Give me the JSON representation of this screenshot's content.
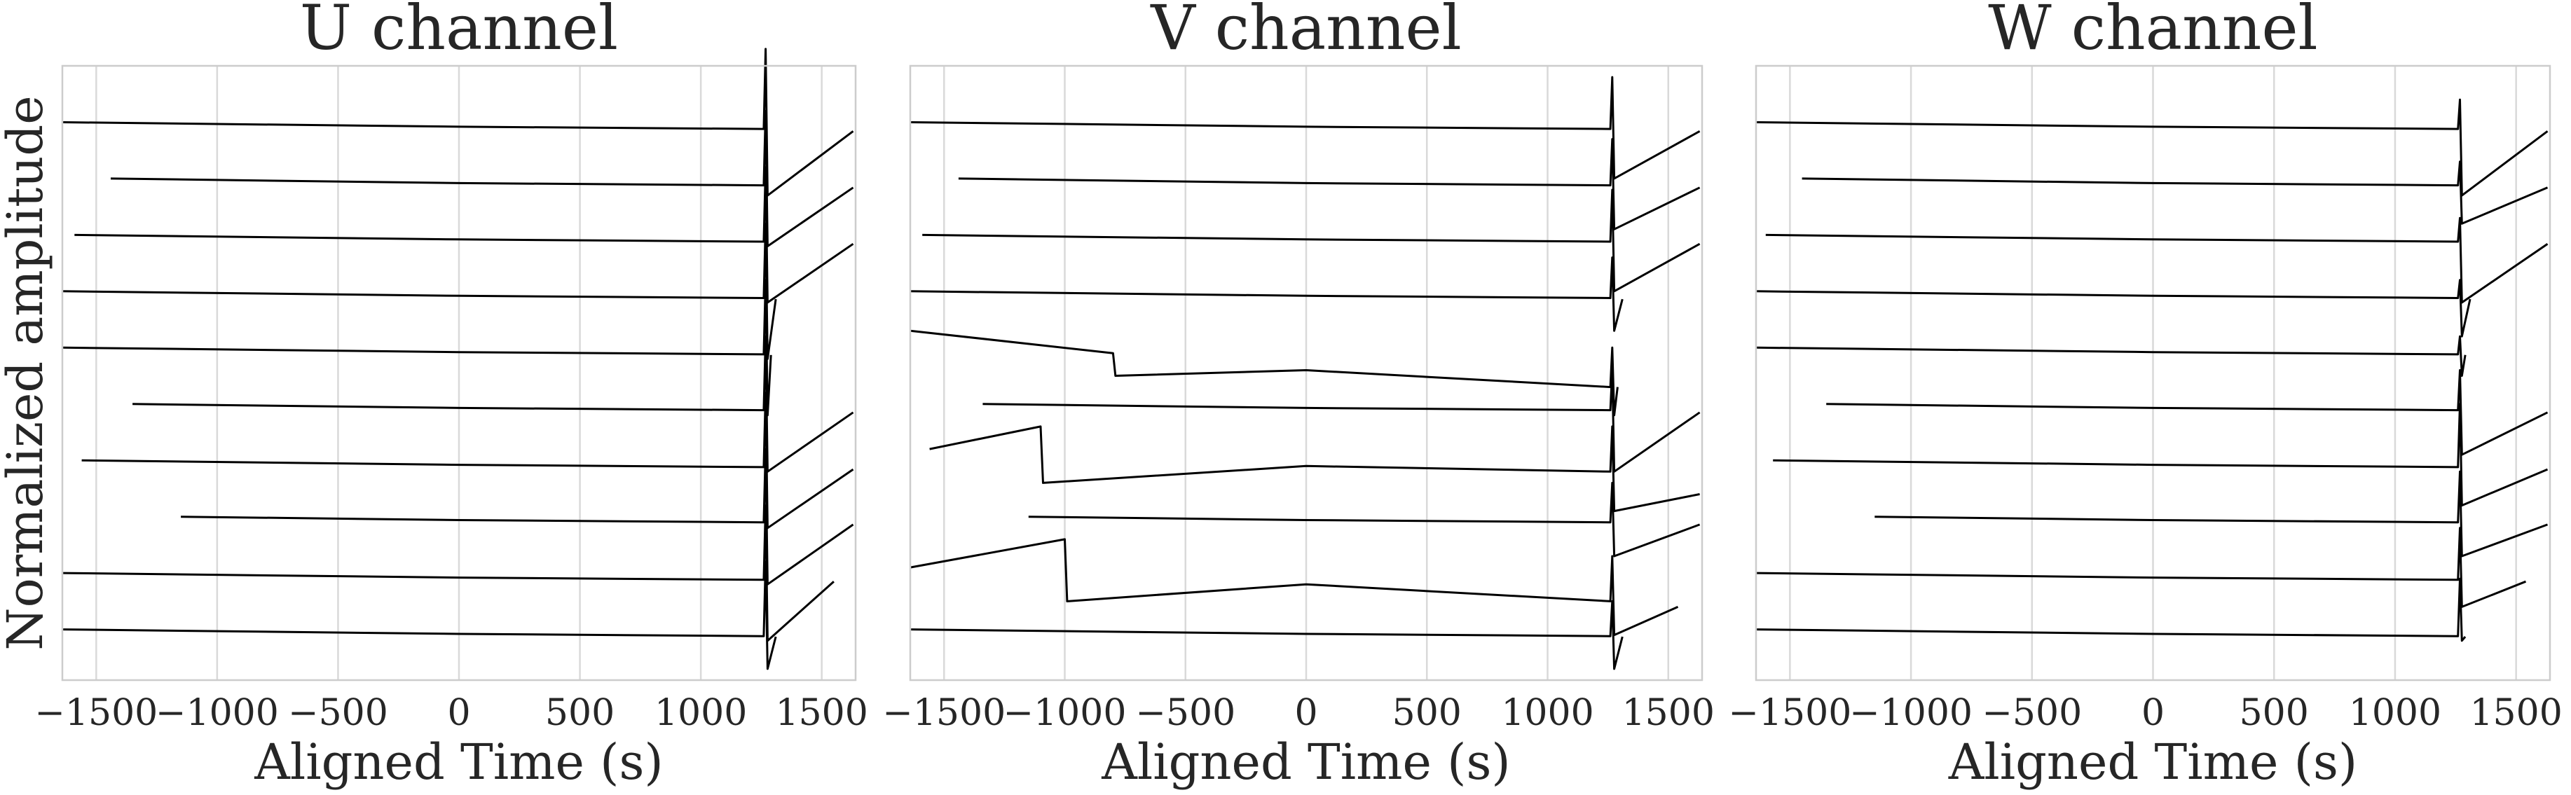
{
  "chart_data": [
    {
      "type": "line",
      "title": "U channel",
      "x_label": "Aligned Time (s)",
      "y_label": "Normalized amplitude",
      "color": "#000000",
      "grid": true,
      "xlim": [
        -1640,
        1640
      ],
      "ylim": [
        0.1,
        11
      ],
      "xticks": [
        {
          "value": -1500,
          "label": "−1500"
        },
        {
          "value": -1000,
          "label": "−1000"
        },
        {
          "value": -500,
          "label": "−500"
        },
        0,
        500,
        1000,
        1500
      ],
      "series": [
        {
          "x": [
            -1640,
            0,
            1260,
            1268,
            1276,
            1630
          ],
          "values": [
            10,
            9.92,
            9.88,
            11.3,
            8.7,
            9.84
          ]
        },
        {
          "x": [
            -1440,
            0,
            1260,
            1268,
            1276,
            1630
          ],
          "values": [
            9,
            8.92,
            8.88,
            10.2,
            7.8,
            8.84
          ]
        },
        {
          "x": [
            -1590,
            0,
            1260,
            1268,
            1276,
            1630
          ],
          "values": [
            8,
            7.92,
            7.88,
            9.2,
            6.8,
            7.84
          ]
        },
        {
          "x": [
            -1640,
            0,
            1260,
            1268,
            1276,
            1310
          ],
          "values": [
            7,
            6.92,
            6.88,
            8.2,
            5.8,
            6.86
          ]
        },
        {
          "x": [
            -1640,
            0,
            1260,
            1268,
            1276,
            1290
          ],
          "values": [
            6,
            5.92,
            5.88,
            7.2,
            4.8,
            5.87
          ]
        },
        {
          "x": [
            -1350,
            0,
            1260,
            1268,
            1276,
            1630
          ],
          "values": [
            5,
            4.93,
            4.89,
            6.2,
            3.8,
            4.85
          ]
        },
        {
          "x": [
            -1560,
            0,
            1260,
            1268,
            1276,
            1630
          ],
          "values": [
            4,
            3.92,
            3.88,
            5.2,
            2.8,
            3.84
          ]
        },
        {
          "x": [
            -1150,
            0,
            1260,
            1268,
            1276,
            1630
          ],
          "values": [
            3,
            2.94,
            2.9,
            4.2,
            1.8,
            2.86
          ]
        },
        {
          "x": [
            -1640,
            0,
            1260,
            1268,
            1276,
            1550
          ],
          "values": [
            2,
            1.92,
            1.88,
            3.2,
            0.8,
            1.85
          ]
        },
        {
          "x": [
            -1640,
            0,
            1260,
            1268,
            1276,
            1310
          ],
          "values": [
            1,
            0.92,
            0.88,
            2.2,
            0.3,
            0.87
          ]
        }
      ]
    },
    {
      "type": "line",
      "title": "V channel",
      "x_label": "Aligned Time (s)",
      "color": "#000000",
      "grid": true,
      "xlim": [
        -1640,
        1640
      ],
      "ylim": [
        0.1,
        11
      ],
      "xticks": [
        {
          "value": -1500,
          "label": "−1500"
        },
        {
          "value": -1000,
          "label": "−1000"
        },
        {
          "value": -500,
          "label": "−500"
        },
        0,
        500,
        1000,
        1500
      ],
      "series": [
        {
          "x": [
            -1640,
            0,
            1260,
            1268,
            1276,
            1630
          ],
          "values": [
            10,
            9.92,
            9.88,
            10.8,
            9.0,
            9.84
          ]
        },
        {
          "x": [
            -1440,
            0,
            1260,
            1268,
            1276,
            1630
          ],
          "values": [
            9,
            8.92,
            8.88,
            9.7,
            8.1,
            8.84
          ]
        },
        {
          "x": [
            -1590,
            0,
            1260,
            1268,
            1276,
            1630
          ],
          "values": [
            8,
            7.92,
            7.88,
            8.8,
            7.0,
            7.84
          ]
        },
        {
          "x": [
            -1640,
            0,
            1260,
            1268,
            1276,
            1310
          ],
          "values": [
            7,
            6.92,
            6.88,
            7.6,
            6.3,
            6.86
          ]
        },
        {
          "x": [
            -1640,
            -800,
            -790,
            0,
            1260,
            1268,
            1276,
            1290
          ],
          "values": [
            6.3,
            5.9,
            5.5,
            5.6,
            5.3,
            6.0,
            4.8,
            5.3
          ]
        },
        {
          "x": [
            -1340,
            0,
            1260,
            1268,
            1276,
            1630
          ],
          "values": [
            5,
            4.93,
            4.89,
            5.6,
            3.8,
            4.85
          ]
        },
        {
          "x": [
            -1560,
            -1100,
            -1090,
            0,
            1260,
            1268,
            1276,
            1630
          ],
          "values": [
            4.2,
            4.6,
            3.6,
            3.9,
            3.8,
            4.6,
            3.1,
            3.4
          ]
        },
        {
          "x": [
            -1150,
            0,
            1260,
            1268,
            1276,
            1630
          ],
          "values": [
            3,
            2.94,
            2.9,
            3.6,
            2.3,
            2.86
          ]
        },
        {
          "x": [
            -1640,
            -1000,
            -990,
            0,
            1260,
            1268,
            1276,
            1540
          ],
          "values": [
            2.1,
            2.6,
            1.5,
            1.8,
            1.5,
            2.3,
            0.9,
            1.4
          ]
        },
        {
          "x": [
            -1640,
            0,
            1260,
            1268,
            1276,
            1310
          ],
          "values": [
            1,
            0.92,
            0.88,
            1.5,
            0.3,
            0.87
          ]
        }
      ]
    },
    {
      "type": "line",
      "title": "W channel",
      "x_label": "Aligned Time (s)",
      "color": "#000000",
      "grid": true,
      "xlim": [
        -1640,
        1640
      ],
      "ylim": [
        0.1,
        11
      ],
      "xticks": [
        {
          "value": -1500,
          "label": "−1500"
        },
        {
          "value": -1000,
          "label": "−1000"
        },
        {
          "value": -500,
          "label": "−500"
        },
        0,
        500,
        1000,
        1500
      ],
      "series": [
        {
          "x": [
            -1640,
            0,
            1260,
            1268,
            1276,
            1630
          ],
          "values": [
            10,
            9.92,
            9.88,
            10.4,
            8.7,
            9.84
          ]
        },
        {
          "x": [
            -1450,
            0,
            1260,
            1268,
            1276,
            1630
          ],
          "values": [
            9,
            8.92,
            8.88,
            9.3,
            8.2,
            8.84
          ]
        },
        {
          "x": [
            -1600,
            0,
            1260,
            1268,
            1276,
            1630
          ],
          "values": [
            8,
            7.92,
            7.88,
            8.3,
            6.8,
            7.84
          ]
        },
        {
          "x": [
            -1640,
            0,
            1260,
            1268,
            1276,
            1310
          ],
          "values": [
            7,
            6.92,
            6.88,
            7.2,
            6.2,
            6.86
          ]
        },
        {
          "x": [
            -1640,
            0,
            1260,
            1268,
            1276,
            1290
          ],
          "values": [
            6,
            5.92,
            5.88,
            6.2,
            5.5,
            5.87
          ]
        },
        {
          "x": [
            -1350,
            0,
            1260,
            1268,
            1276,
            1630
          ],
          "values": [
            5,
            4.93,
            4.89,
            5.6,
            4.1,
            4.85
          ]
        },
        {
          "x": [
            -1570,
            0,
            1260,
            1268,
            1276,
            1630
          ],
          "values": [
            4,
            3.92,
            3.88,
            5.0,
            3.2,
            3.84
          ]
        },
        {
          "x": [
            -1150,
            0,
            1260,
            1268,
            1276,
            1630
          ],
          "values": [
            3,
            2.94,
            2.9,
            3.8,
            2.3,
            2.86
          ]
        },
        {
          "x": [
            -1640,
            0,
            1260,
            1268,
            1276,
            1540
          ],
          "values": [
            2,
            1.92,
            1.88,
            2.8,
            1.4,
            1.85
          ]
        },
        {
          "x": [
            -1640,
            0,
            1260,
            1268,
            1276,
            1290
          ],
          "values": [
            1,
            0.92,
            0.88,
            1.9,
            0.8,
            0.87
          ]
        }
      ]
    }
  ]
}
